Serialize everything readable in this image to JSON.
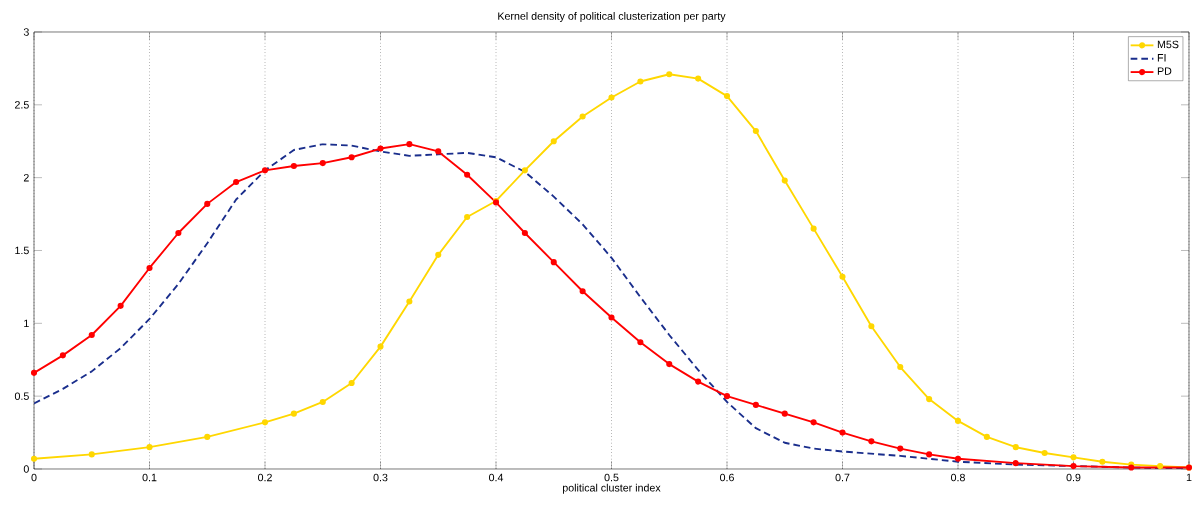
{
  "chart_data": {
    "type": "line",
    "title": "Kernel density of political clusterization per party",
    "xlabel": "political cluster index",
    "xlim": [
      0,
      1
    ],
    "ylim": [
      0,
      3
    ],
    "xticks": [
      0,
      0.1,
      0.2,
      0.3,
      0.4,
      0.5,
      0.6,
      0.7,
      0.8,
      0.9,
      1
    ],
    "yticks": [
      0,
      0.5,
      1,
      1.5,
      2,
      2.5,
      3
    ],
    "grid": "x",
    "legend": "top right",
    "series": [
      {
        "name": "M5S",
        "color": "#ffd700",
        "marker": "circle",
        "line_style": "solid",
        "x": [
          0,
          0.05,
          0.1,
          0.15,
          0.2,
          0.225,
          0.25,
          0.275,
          0.3,
          0.325,
          0.35,
          0.375,
          0.4,
          0.425,
          0.45,
          0.475,
          0.5,
          0.525,
          0.55,
          0.575,
          0.6,
          0.625,
          0.65,
          0.675,
          0.7,
          0.725,
          0.75,
          0.775,
          0.8,
          0.825,
          0.85,
          0.875,
          0.9,
          0.925,
          0.95,
          0.975,
          1
        ],
        "values": [
          0.07,
          0.1,
          0.15,
          0.22,
          0.32,
          0.38,
          0.46,
          0.59,
          0.84,
          1.15,
          1.47,
          1.73,
          1.84,
          2.05,
          2.25,
          2.42,
          2.55,
          2.66,
          2.71,
          2.68,
          2.56,
          2.32,
          1.98,
          1.65,
          1.32,
          0.98,
          0.7,
          0.48,
          0.33,
          0.22,
          0.15,
          0.11,
          0.08,
          0.05,
          0.03,
          0.02,
          0.01
        ]
      },
      {
        "name": "FI",
        "color": "#1a2e8c",
        "marker": "none",
        "line_style": "dashed",
        "x": [
          0,
          0.025,
          0.05,
          0.075,
          0.1,
          0.125,
          0.15,
          0.175,
          0.2,
          0.225,
          0.25,
          0.275,
          0.3,
          0.325,
          0.35,
          0.375,
          0.4,
          0.425,
          0.45,
          0.475,
          0.5,
          0.525,
          0.55,
          0.575,
          0.6,
          0.625,
          0.65,
          0.675,
          0.7,
          0.75,
          0.8,
          0.85,
          0.9,
          0.95,
          1
        ],
        "values": [
          0.45,
          0.55,
          0.67,
          0.83,
          1.03,
          1.27,
          1.55,
          1.85,
          2.05,
          2.19,
          2.23,
          2.22,
          2.18,
          2.15,
          2.16,
          2.17,
          2.14,
          2.04,
          1.87,
          1.68,
          1.45,
          1.18,
          0.92,
          0.68,
          0.46,
          0.28,
          0.18,
          0.14,
          0.12,
          0.09,
          0.05,
          0.03,
          0.02,
          0.01,
          0
        ]
      },
      {
        "name": "PD",
        "color": "#ff0000",
        "marker": "circle",
        "line_style": "solid",
        "x": [
          0,
          0.025,
          0.05,
          0.075,
          0.1,
          0.125,
          0.15,
          0.175,
          0.2,
          0.225,
          0.25,
          0.275,
          0.3,
          0.325,
          0.35,
          0.375,
          0.4,
          0.425,
          0.45,
          0.475,
          0.5,
          0.525,
          0.55,
          0.575,
          0.6,
          0.625,
          0.65,
          0.675,
          0.7,
          0.725,
          0.75,
          0.775,
          0.8,
          0.85,
          0.9,
          0.95,
          1
        ],
        "values": [
          0.66,
          0.78,
          0.92,
          1.12,
          1.38,
          1.62,
          1.82,
          1.97,
          2.05,
          2.08,
          2.1,
          2.14,
          2.2,
          2.23,
          2.18,
          2.02,
          1.83,
          1.62,
          1.42,
          1.22,
          1.04,
          0.87,
          0.72,
          0.6,
          0.5,
          0.44,
          0.38,
          0.32,
          0.25,
          0.19,
          0.14,
          0.1,
          0.07,
          0.04,
          0.02,
          0.01,
          0.01
        ]
      }
    ]
  }
}
